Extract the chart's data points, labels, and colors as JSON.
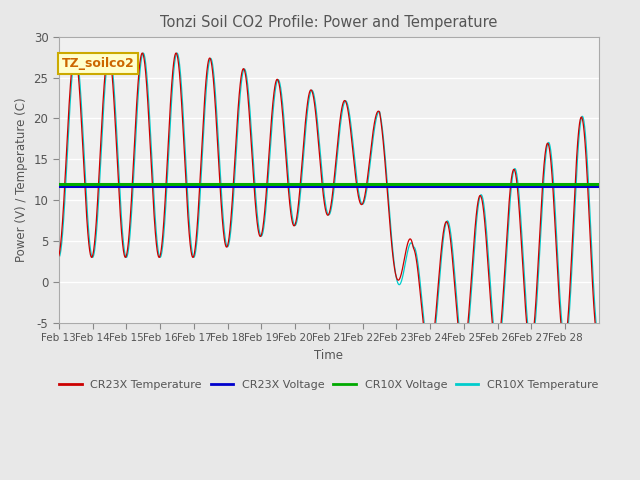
{
  "title": "Tonzi Soil CO2 Profile: Power and Temperature",
  "ylabel": "Power (V) / Temperature (C)",
  "xlabel": "Time",
  "ylim": [
    -5,
    30
  ],
  "yticks": [
    -5,
    0,
    5,
    10,
    15,
    20,
    25,
    30
  ],
  "xtick_labels": [
    "Feb 13",
    "Feb 14",
    "Feb 15",
    "Feb 16",
    "Feb 17",
    "Feb 18",
    "Feb 19",
    "Feb 20",
    "Feb 21",
    "Feb 22",
    "Feb 23",
    "Feb 24",
    "Feb 25",
    "Feb 26",
    "Feb 27",
    "Feb 28"
  ],
  "n_days": 16,
  "cr23x_voltage_value": 11.75,
  "cr10x_voltage_value": 11.92,
  "cr23x_color": "#cc0000",
  "cr23x_voltage_color": "#0000cc",
  "cr10x_voltage_color": "#00aa00",
  "cr10x_color": "#00cccc",
  "bg_color": "#e8e8e8",
  "plot_bg_color": "#f0f0f0",
  "legend_box_facecolor": "#ffffcc",
  "legend_box_edgecolor": "#ccaa00",
  "legend_text_color": "#cc6600",
  "title_color": "#555555",
  "label_color": "#555555",
  "tick_color": "#555555",
  "grid_color": "#ffffff"
}
